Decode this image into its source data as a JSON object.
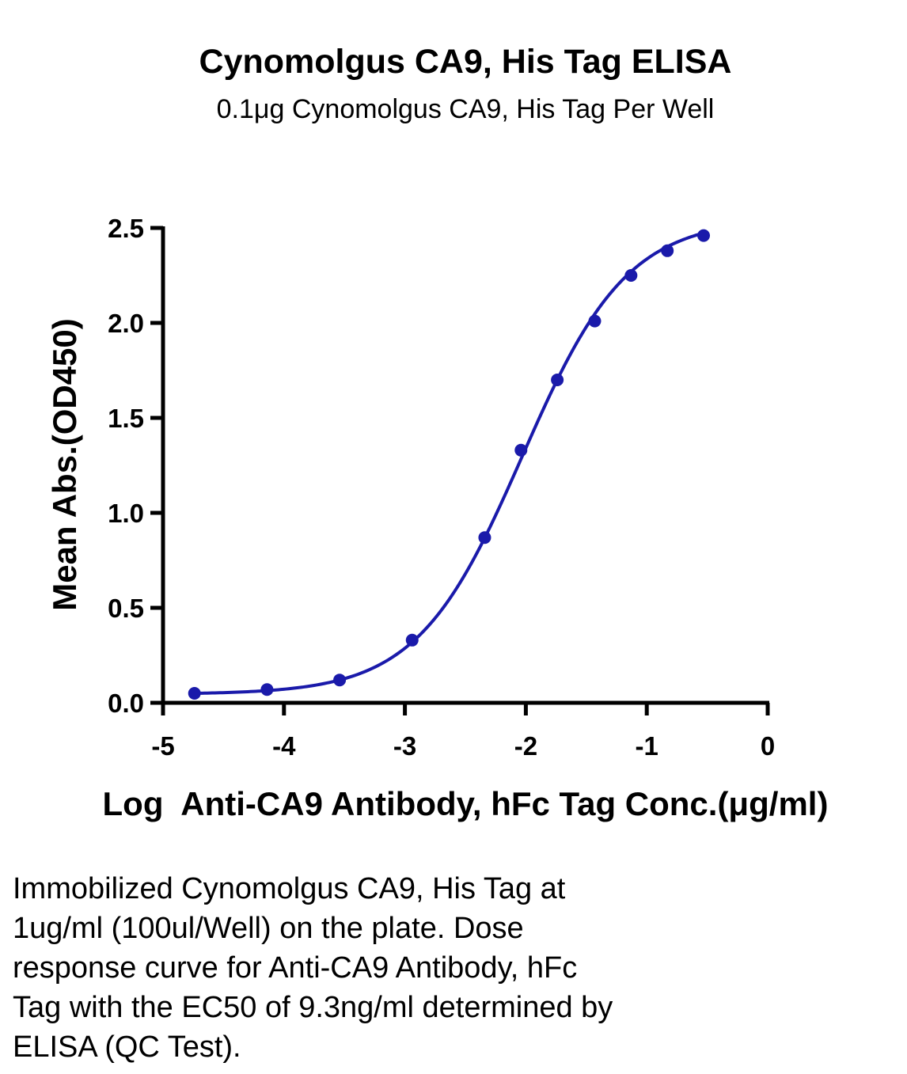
{
  "chart_data": {
    "type": "scatter",
    "title": "Cynomolgus CA9, His Tag ELISA",
    "subtitle": "0.1μg Cynomolgus CA9, His Tag Per Well",
    "xlabel": "Log  Anti-CA9 Antibody, hFc Tag Conc.(μg/ml)",
    "ylabel": "Mean Abs.(OD450)",
    "xlim": [
      -5,
      0
    ],
    "ylim": [
      0,
      2.5
    ],
    "x_ticks": [
      -5,
      -4,
      -3,
      -2,
      -1,
      0
    ],
    "x_tick_labels": [
      "-5",
      "-4",
      "-3",
      "-2",
      "-1",
      "0"
    ],
    "y_ticks": [
      0,
      0.5,
      1.0,
      1.5,
      2.0,
      2.5
    ],
    "y_tick_labels": [
      "0.0",
      "0.5",
      "1.0",
      "1.5",
      "2.0",
      "2.5"
    ],
    "grid": false,
    "series_color": "#1a1aaa",
    "points": [
      {
        "x": -4.74,
        "y": 0.05
      },
      {
        "x": -4.14,
        "y": 0.07
      },
      {
        "x": -3.54,
        "y": 0.12
      },
      {
        "x": -2.94,
        "y": 0.33
      },
      {
        "x": -2.34,
        "y": 0.87
      },
      {
        "x": -2.04,
        "y": 1.33
      },
      {
        "x": -1.74,
        "y": 1.7
      },
      {
        "x": -1.43,
        "y": 2.01
      },
      {
        "x": -1.13,
        "y": 2.25
      },
      {
        "x": -0.83,
        "y": 2.38
      },
      {
        "x": -0.53,
        "y": 2.46
      }
    ],
    "fit": {
      "model": "4PL",
      "bottom": 0.045,
      "top": 2.55,
      "log_ec50": -2.03,
      "hill": 1.0
    }
  },
  "caption": "Immobilized Cynomolgus CA9, His Tag at\n1ug/ml (100ul/Well) on the plate. Dose\nresponse curve for Anti-CA9 Antibody, hFc\nTag with the EC50 of 9.3ng/ml determined by\nELISA (QC Test)."
}
